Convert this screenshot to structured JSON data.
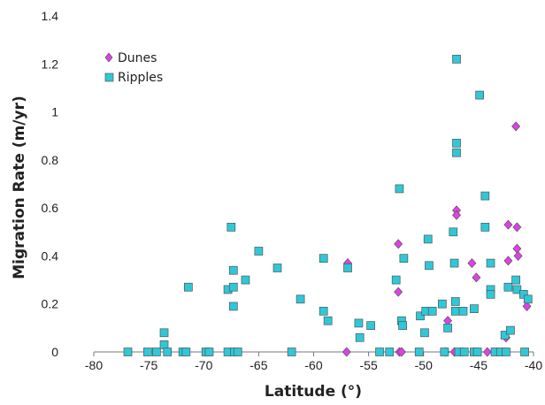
{
  "chart_data": {
    "type": "scatter",
    "title": "",
    "xlabel": "Latitude (°)",
    "ylabel": "Migration Rate  (m/yr)",
    "xlim": [
      -80,
      -40
    ],
    "ylim": [
      0,
      1.4
    ],
    "x_ticks": [
      -80,
      -75,
      -70,
      -65,
      -60,
      -55,
      -50,
      -45,
      -40
    ],
    "y_ticks": [
      0,
      0.2,
      0.4,
      0.6,
      0.8,
      1,
      1.2,
      1.4
    ],
    "x_tick_labels": [
      "-80",
      "-75",
      "-70",
      "-65",
      "-60",
      "-55",
      "-50",
      "-45",
      "-40"
    ],
    "y_tick_labels": [
      "0",
      "0.2",
      "0.4",
      "0.6",
      "0.8",
      "1",
      "1.2",
      "1.4"
    ],
    "grid": false,
    "legend_position": "top-left",
    "series": [
      {
        "name": "Dunes",
        "marker": "diamond",
        "color": "#e040e8",
        "points": [
          [
            -57.0,
            0.0
          ],
          [
            -56.9,
            0.37
          ],
          [
            -52.3,
            0.45
          ],
          [
            -52.3,
            0.25
          ],
          [
            -52.2,
            0.0
          ],
          [
            -52.0,
            0.0
          ],
          [
            -48.0,
            0.0
          ],
          [
            -47.8,
            0.13
          ],
          [
            -47.2,
            0.0
          ],
          [
            -47.0,
            0.59
          ],
          [
            -47.0,
            0.57
          ],
          [
            -45.6,
            0.37
          ],
          [
            -45.2,
            0.31
          ],
          [
            -44.2,
            0.0
          ],
          [
            -42.5,
            0.06
          ],
          [
            -42.3,
            0.53
          ],
          [
            -42.3,
            0.38
          ],
          [
            -41.6,
            0.94
          ],
          [
            -41.5,
            0.52
          ],
          [
            -41.5,
            0.43
          ],
          [
            -41.4,
            0.4
          ],
          [
            -40.6,
            0.19
          ]
        ]
      },
      {
        "name": "Ripples",
        "marker": "square",
        "color": "#2ec8d8",
        "points": [
          [
            -76.9,
            0.0
          ],
          [
            -75.1,
            0.0
          ],
          [
            -74.3,
            0.0
          ],
          [
            -73.6,
            0.08
          ],
          [
            -73.6,
            0.03
          ],
          [
            -73.3,
            0.0
          ],
          [
            -71.9,
            0.0
          ],
          [
            -71.6,
            0.0
          ],
          [
            -71.4,
            0.27
          ],
          [
            -69.8,
            0.0
          ],
          [
            -69.5,
            0.0
          ],
          [
            -67.8,
            0.0
          ],
          [
            -67.8,
            0.26
          ],
          [
            -67.5,
            0.52
          ],
          [
            -67.3,
            0.34
          ],
          [
            -67.3,
            0.27
          ],
          [
            -67.3,
            0.19
          ],
          [
            -67.2,
            0.0
          ],
          [
            -66.9,
            0.0
          ],
          [
            -66.2,
            0.3
          ],
          [
            -65.0,
            0.42
          ],
          [
            -63.3,
            0.35
          ],
          [
            -62.0,
            0.0
          ],
          [
            -61.2,
            0.22
          ],
          [
            -59.1,
            0.39
          ],
          [
            -59.1,
            0.17
          ],
          [
            -58.7,
            0.13
          ],
          [
            -56.9,
            0.35
          ],
          [
            -55.9,
            0.12
          ],
          [
            -55.8,
            0.06
          ],
          [
            -54.8,
            0.11
          ],
          [
            -54.0,
            0.0
          ],
          [
            -53.1,
            0.0
          ],
          [
            -52.5,
            0.3
          ],
          [
            -52.2,
            0.68
          ],
          [
            -52.0,
            0.13
          ],
          [
            -51.9,
            0.11
          ],
          [
            -51.8,
            0.39
          ],
          [
            -50.4,
            0.0
          ],
          [
            -50.3,
            0.15
          ],
          [
            -49.9,
            0.08
          ],
          [
            -49.8,
            0.17
          ],
          [
            -49.6,
            0.47
          ],
          [
            -49.5,
            0.36
          ],
          [
            -49.2,
            0.17
          ],
          [
            -48.3,
            0.2
          ],
          [
            -48.1,
            0.0
          ],
          [
            -47.8,
            0.1
          ],
          [
            -47.3,
            0.5
          ],
          [
            -47.2,
            0.37
          ],
          [
            -47.1,
            0.21
          ],
          [
            -47.1,
            0.17
          ],
          [
            -47.0,
            0.87
          ],
          [
            -47.0,
            0.83
          ],
          [
            -47.0,
            1.22
          ],
          [
            -46.8,
            0.0
          ],
          [
            -46.4,
            0.17
          ],
          [
            -46.3,
            0.0
          ],
          [
            -45.4,
            0.18
          ],
          [
            -45.4,
            0.0
          ],
          [
            -45.1,
            0.0
          ],
          [
            -44.9,
            1.07
          ],
          [
            -44.4,
            0.65
          ],
          [
            -44.4,
            0.52
          ],
          [
            -43.9,
            0.37
          ],
          [
            -43.9,
            0.26
          ],
          [
            -43.9,
            0.24
          ],
          [
            -43.5,
            0.0
          ],
          [
            -43.0,
            0.0
          ],
          [
            -42.6,
            0.07
          ],
          [
            -42.5,
            0.0
          ],
          [
            -42.3,
            0.27
          ],
          [
            -42.1,
            0.09
          ],
          [
            -41.6,
            0.3
          ],
          [
            -41.5,
            0.26
          ],
          [
            -40.9,
            0.24
          ],
          [
            -40.8,
            0.0
          ],
          [
            -40.5,
            0.22
          ]
        ]
      }
    ]
  }
}
